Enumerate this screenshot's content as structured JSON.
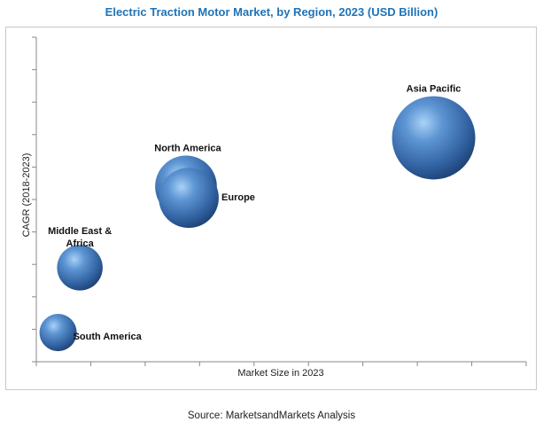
{
  "chart_data": {
    "type": "scatter",
    "title": "Electric Traction Motor Market, by Region, 2023 (USD Billion)",
    "xlabel": "Market Size in 2023",
    "ylabel": "CAGR (2018-2023)",
    "grid": false,
    "series": [
      {
        "name": "Asia Pacific",
        "label_lines": [
          "Asia Pacific"
        ],
        "x": 7.3,
        "y": 6.9,
        "size": 1.0
      },
      {
        "name": "North America",
        "label_lines": [
          "North America"
        ],
        "x": 2.75,
        "y": 5.4,
        "size": 0.55
      },
      {
        "name": "Europe",
        "label_lines": [
          "Europe"
        ],
        "x": 2.8,
        "y": 5.05,
        "size": 0.52
      },
      {
        "name": "Middle East & Africa",
        "label_lines": [
          "Middle East &",
          "Africa"
        ],
        "x": 0.8,
        "y": 2.9,
        "size": 0.3
      },
      {
        "name": "South America",
        "label_lines": [
          "South America"
        ],
        "x": 0.4,
        "y": 0.9,
        "size": 0.2
      }
    ],
    "xlim": [
      0,
      9
    ],
    "ylim": [
      0,
      10
    ]
  },
  "source": "Source: MarketsandMarkets Analysis",
  "colors": {
    "bubble": "#3b6fb3",
    "title": "#1f73b7"
  }
}
